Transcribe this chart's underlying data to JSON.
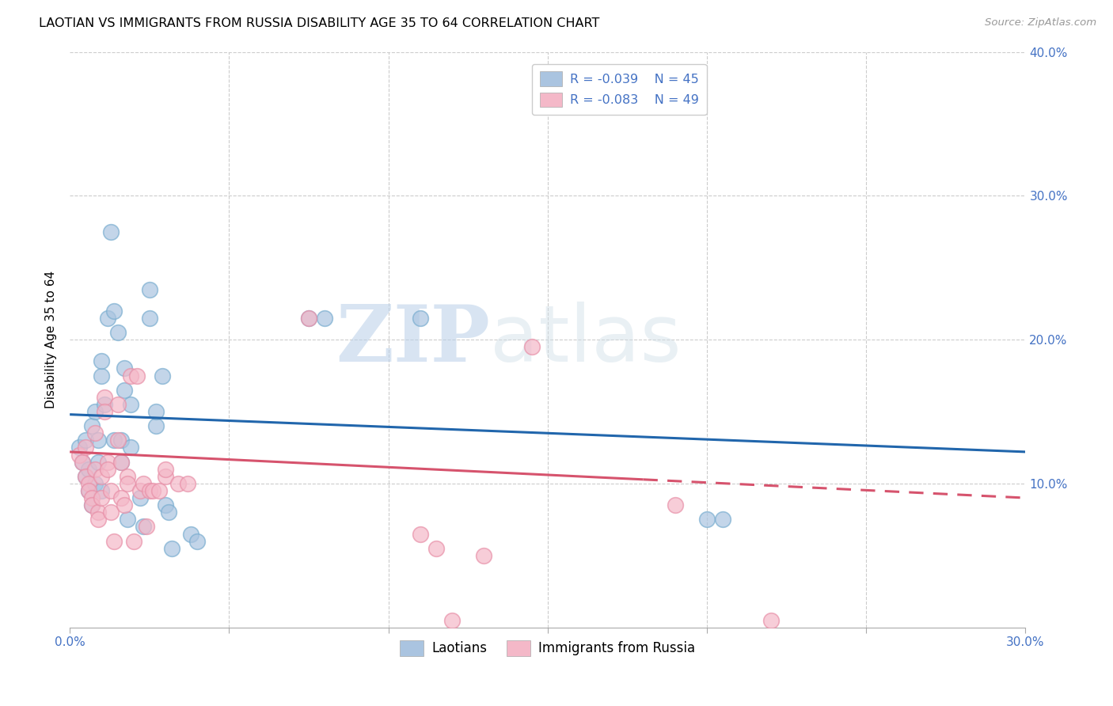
{
  "title": "LAOTIAN VS IMMIGRANTS FROM RUSSIA DISABILITY AGE 35 TO 64 CORRELATION CHART",
  "source": "Source: ZipAtlas.com",
  "ylabel": "Disability Age 35 to 64",
  "xlim": [
    0.0,
    0.3
  ],
  "ylim": [
    0.0,
    0.4
  ],
  "xticks": [
    0.0,
    0.05,
    0.1,
    0.15,
    0.2,
    0.25,
    0.3
  ],
  "yticks": [
    0.0,
    0.1,
    0.2,
    0.3,
    0.4
  ],
  "legend_blue_R": "R = -0.039",
  "legend_blue_N": "N = 45",
  "legend_pink_R": "R = -0.083",
  "legend_pink_N": "N = 49",
  "blue_color": "#aac4e0",
  "pink_color": "#f4b8c8",
  "blue_edge_color": "#7aaed0",
  "pink_edge_color": "#e890a8",
  "blue_line_color": "#2166ac",
  "pink_line_color": "#d6536d",
  "watermark_zip": "ZIP",
  "watermark_atlas": "atlas",
  "blue_scatter": [
    [
      0.003,
      0.125
    ],
    [
      0.004,
      0.115
    ],
    [
      0.005,
      0.105
    ],
    [
      0.005,
      0.13
    ],
    [
      0.006,
      0.11
    ],
    [
      0.006,
      0.095
    ],
    [
      0.007,
      0.085
    ],
    [
      0.007,
      0.14
    ],
    [
      0.008,
      0.15
    ],
    [
      0.008,
      0.1
    ],
    [
      0.009,
      0.115
    ],
    [
      0.009,
      0.13
    ],
    [
      0.01,
      0.175
    ],
    [
      0.01,
      0.185
    ],
    [
      0.01,
      0.095
    ],
    [
      0.011,
      0.155
    ],
    [
      0.012,
      0.215
    ],
    [
      0.013,
      0.275
    ],
    [
      0.014,
      0.13
    ],
    [
      0.014,
      0.22
    ],
    [
      0.015,
      0.205
    ],
    [
      0.016,
      0.115
    ],
    [
      0.016,
      0.13
    ],
    [
      0.017,
      0.18
    ],
    [
      0.017,
      0.165
    ],
    [
      0.018,
      0.075
    ],
    [
      0.019,
      0.125
    ],
    [
      0.019,
      0.155
    ],
    [
      0.022,
      0.09
    ],
    [
      0.023,
      0.07
    ],
    [
      0.025,
      0.215
    ],
    [
      0.025,
      0.235
    ],
    [
      0.027,
      0.14
    ],
    [
      0.027,
      0.15
    ],
    [
      0.029,
      0.175
    ],
    [
      0.03,
      0.085
    ],
    [
      0.031,
      0.08
    ],
    [
      0.032,
      0.055
    ],
    [
      0.038,
      0.065
    ],
    [
      0.04,
      0.06
    ],
    [
      0.075,
      0.215
    ],
    [
      0.08,
      0.215
    ],
    [
      0.11,
      0.215
    ],
    [
      0.2,
      0.075
    ],
    [
      0.205,
      0.075
    ]
  ],
  "pink_scatter": [
    [
      0.003,
      0.12
    ],
    [
      0.004,
      0.115
    ],
    [
      0.005,
      0.125
    ],
    [
      0.005,
      0.105
    ],
    [
      0.006,
      0.1
    ],
    [
      0.006,
      0.095
    ],
    [
      0.007,
      0.09
    ],
    [
      0.007,
      0.085
    ],
    [
      0.008,
      0.11
    ],
    [
      0.008,
      0.135
    ],
    [
      0.009,
      0.08
    ],
    [
      0.009,
      0.075
    ],
    [
      0.01,
      0.09
    ],
    [
      0.01,
      0.105
    ],
    [
      0.011,
      0.16
    ],
    [
      0.011,
      0.15
    ],
    [
      0.012,
      0.115
    ],
    [
      0.012,
      0.11
    ],
    [
      0.013,
      0.08
    ],
    [
      0.013,
      0.095
    ],
    [
      0.014,
      0.06
    ],
    [
      0.015,
      0.13
    ],
    [
      0.015,
      0.155
    ],
    [
      0.016,
      0.115
    ],
    [
      0.016,
      0.09
    ],
    [
      0.017,
      0.085
    ],
    [
      0.018,
      0.105
    ],
    [
      0.018,
      0.1
    ],
    [
      0.019,
      0.175
    ],
    [
      0.02,
      0.06
    ],
    [
      0.021,
      0.175
    ],
    [
      0.022,
      0.095
    ],
    [
      0.023,
      0.1
    ],
    [
      0.024,
      0.07
    ],
    [
      0.025,
      0.095
    ],
    [
      0.026,
      0.095
    ],
    [
      0.028,
      0.095
    ],
    [
      0.03,
      0.105
    ],
    [
      0.03,
      0.11
    ],
    [
      0.034,
      0.1
    ],
    [
      0.037,
      0.1
    ],
    [
      0.075,
      0.215
    ],
    [
      0.11,
      0.065
    ],
    [
      0.115,
      0.055
    ],
    [
      0.12,
      0.005
    ],
    [
      0.13,
      0.05
    ],
    [
      0.145,
      0.195
    ],
    [
      0.19,
      0.085
    ],
    [
      0.22,
      0.005
    ]
  ]
}
